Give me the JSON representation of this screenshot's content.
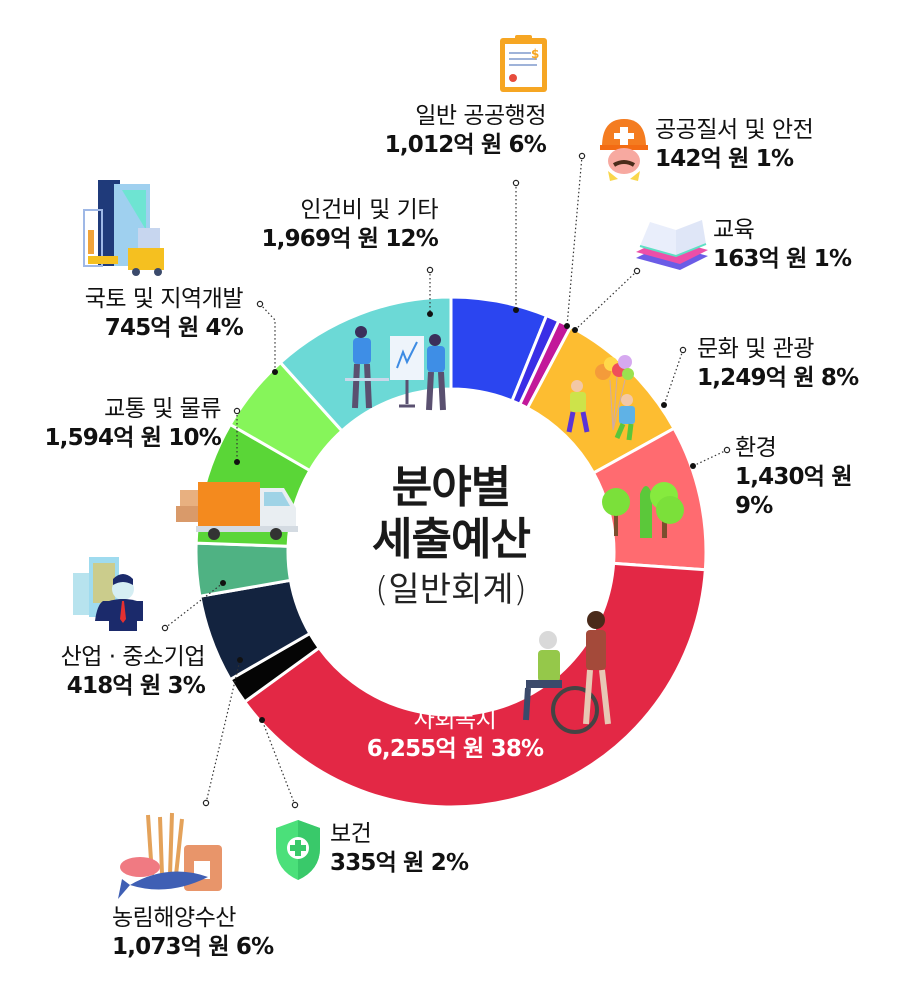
{
  "center": {
    "title_line1": "분야별",
    "title_line2": "세출예산",
    "subtitle": "(일반회계)"
  },
  "chart_data": {
    "type": "pie",
    "variant": "donut",
    "title": "분야별 세출예산 (일반회계)",
    "unit": "억 원",
    "start_angle": "12 o'clock, clockwise",
    "slices": [
      {
        "key": "general",
        "label": "일반 공공행정",
        "value": 1012,
        "value_text": "1,012억 원",
        "percent": 6,
        "percent_text": "6%",
        "color": "#2b45f0",
        "icon": "contract-document-icon"
      },
      {
        "key": "order",
        "label": "공공질서 및 안전",
        "value": 142,
        "value_text": "142억 원",
        "percent": 1,
        "percent_text": "1%",
        "color": "#3a2ee6",
        "icon": "safety-worker-icon"
      },
      {
        "key": "education",
        "label": "교육",
        "value": 163,
        "value_text": "163억 원",
        "percent": 1,
        "percent_text": "1%",
        "color": "#c2189a",
        "icon": "books-icon"
      },
      {
        "key": "culture",
        "label": "문화 및 관광",
        "value": 1249,
        "value_text": "1,249억 원",
        "percent": 8,
        "percent_text": "8%",
        "color": "#fdbd31",
        "icon": "balloon-people-icon"
      },
      {
        "key": "environment",
        "label": "환경",
        "value": 1430,
        "value_text": "1,430억 원",
        "percent": 9,
        "percent_text": "9%",
        "color": "#ff6b70",
        "icon": "trees-icon"
      },
      {
        "key": "welfare",
        "label": "사회복지",
        "value": 6255,
        "value_text": "6,255억 원",
        "percent": 38,
        "percent_text": "38%",
        "color": "#e32845",
        "icon": "wheelchair-care-icon"
      },
      {
        "key": "health",
        "label": "보건",
        "value": 335,
        "value_text": "335억 원",
        "percent": 2,
        "percent_text": "2%",
        "color": "#050505",
        "icon": "health-shield-icon"
      },
      {
        "key": "agri",
        "label": "농림해양수산",
        "value": 1073,
        "value_text": "1,073억 원",
        "percent": 6,
        "percent_text": "6%",
        "color": "#13233f",
        "icon": "wheat-fish-icon"
      },
      {
        "key": "industry",
        "label": "산업 · 중소기업",
        "value": 418,
        "value_text": "418억 원",
        "percent": 3,
        "percent_text": "3%",
        "color": "#4fb283",
        "icon": "businessman-icon"
      },
      {
        "key": "transport",
        "label": "교통 및 물류",
        "value": 1594,
        "value_text": "1,594억 원",
        "percent": 10,
        "percent_text": "10%",
        "color": "#5ad637",
        "icon": "truck-icon"
      },
      {
        "key": "land",
        "label": "국토 및 지역개발",
        "value": 745,
        "value_text": "745억 원",
        "percent": 4,
        "percent_text": "4%",
        "color": "#86f55a",
        "icon": "construction-building-icon"
      },
      {
        "key": "personnel",
        "label": "인건비 및 기타",
        "value": 1969,
        "value_text": "1,969억 원",
        "percent": 12,
        "percent_text": "12%",
        "color": "#6cd9d6",
        "icon": "meeting-presentation-icon"
      }
    ],
    "legend_position": "labels around ring with dotted leader lines"
  }
}
